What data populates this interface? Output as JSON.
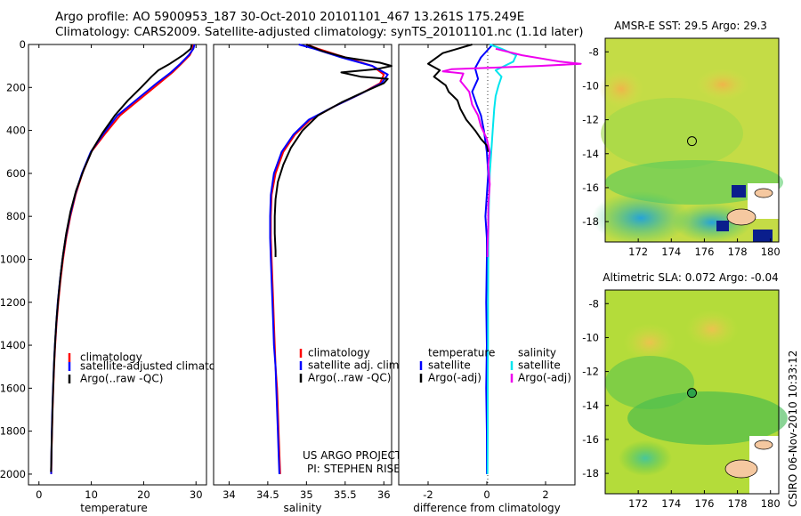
{
  "title": {
    "line1": "Argo profile: AO 5900953_187 30-Oct-2010 20101101_467 13.261S 175.249E",
    "line2": "Climatology: CARS2009. Satellite-adjusted climatology: synTS_20101101.nc (1.1d later)"
  },
  "credit": {
    "project": "US ARGO PROJECT",
    "pi": "PI: STEPHEN RISER"
  },
  "timestamp": "CSIRO 06-Nov-2010 10:33:12",
  "colors": {
    "climatology": "#ff0000",
    "satellite": "#0000ff",
    "argo": "#000000",
    "satellite_sal": "#00e5ee",
    "argo_sal": "#ee00ee"
  },
  "chart_data": [
    {
      "type": "line",
      "name": "temperature-profile",
      "xlabel": "temperature",
      "ylabel": "",
      "xlim": [
        -2,
        32
      ],
      "ylim": [
        2050,
        0
      ],
      "xticks": [
        "0",
        "10",
        "20",
        "30"
      ],
      "yticks": [
        "0",
        "200",
        "400",
        "600",
        "800",
        "1000",
        "1200",
        "1400",
        "1600",
        "1800",
        "2000"
      ],
      "legend": [
        "climatology",
        "satellite-adjusted climatology",
        "Argo(..raw -QC)"
      ],
      "series": [
        {
          "name": "climatology",
          "color": "#ff0000",
          "points": [
            [
              29.5,
              0
            ],
            [
              29.4,
              20
            ],
            [
              28.8,
              50
            ],
            [
              27.2,
              90
            ],
            [
              25.5,
              130
            ],
            [
              23,
              180
            ],
            [
              19.5,
              250
            ],
            [
              15.5,
              330
            ],
            [
              12.5,
              420
            ],
            [
              10,
              500
            ],
            [
              8.3,
              600
            ],
            [
              7,
              700
            ],
            [
              6,
              800
            ],
            [
              5.2,
              900
            ],
            [
              4.6,
              1000
            ],
            [
              4.1,
              1100
            ],
            [
              3.7,
              1200
            ],
            [
              3.35,
              1300
            ],
            [
              3.1,
              1400
            ],
            [
              2.9,
              1500
            ],
            [
              2.75,
              1600
            ],
            [
              2.6,
              1700
            ],
            [
              2.5,
              1800
            ],
            [
              2.4,
              1900
            ],
            [
              2.35,
              2000
            ]
          ]
        },
        {
          "name": "satellite-adjusted climatology",
          "color": "#0000ff",
          "points": [
            [
              29.7,
              0
            ],
            [
              29.5,
              20
            ],
            [
              28.6,
              50
            ],
            [
              27,
              90
            ],
            [
              25.2,
              130
            ],
            [
              22.5,
              180
            ],
            [
              19,
              250
            ],
            [
              15,
              330
            ],
            [
              12.2,
              420
            ],
            [
              9.9,
              500
            ],
            [
              8.2,
              600
            ],
            [
              6.9,
              700
            ],
            [
              5.9,
              800
            ],
            [
              5.1,
              900
            ],
            [
              4.5,
              1000
            ],
            [
              4,
              1100
            ],
            [
              3.6,
              1200
            ],
            [
              3.3,
              1300
            ],
            [
              3.05,
              1400
            ],
            [
              2.85,
              1500
            ],
            [
              2.7,
              1600
            ],
            [
              2.55,
              1700
            ],
            [
              2.45,
              1800
            ],
            [
              2.38,
              1900
            ],
            [
              2.33,
              2000
            ]
          ]
        },
        {
          "name": "Argo(..raw -QC)",
          "color": "#000000",
          "points": [
            [
              29.2,
              0
            ],
            [
              29,
              20
            ],
            [
              27.5,
              50
            ],
            [
              25,
              90
            ],
            [
              22.8,
              120
            ],
            [
              21.5,
              150
            ],
            [
              19.5,
              200
            ],
            [
              17,
              260
            ],
            [
              14.5,
              330
            ],
            [
              12.2,
              410
            ],
            [
              10.2,
              490
            ],
            [
              8.6,
              580
            ],
            [
              7.1,
              680
            ],
            [
              6,
              780
            ],
            [
              5.2,
              880
            ],
            [
              4.6,
              980
            ],
            [
              4.1,
              1080
            ],
            [
              3.7,
              1180
            ],
            [
              3.35,
              1280
            ],
            [
              3.1,
              1380
            ],
            [
              2.9,
              1480
            ],
            [
              2.75,
              1580
            ],
            [
              2.6,
              1680
            ],
            [
              2.5,
              1780
            ],
            [
              2.4,
              1880
            ],
            [
              2.35,
              1950
            ],
            [
              2.3,
              1990
            ]
          ]
        }
      ]
    },
    {
      "type": "line",
      "name": "salinity-profile",
      "xlabel": "salinity",
      "xlim": [
        33.8,
        36.1
      ],
      "ylim": [
        2050,
        0
      ],
      "xticks": [
        "34",
        "34.5",
        "35",
        "35.5",
        "36"
      ],
      "legend": [
        "climatology",
        "satellite adj. clim.",
        "Argo(..raw -QC)"
      ],
      "series": [
        {
          "name": "climatology",
          "color": "#ff0000",
          "points": [
            [
              35.0,
              0
            ],
            [
              35.15,
              20
            ],
            [
              35.5,
              60
            ],
            [
              35.85,
              100
            ],
            [
              36.0,
              140
            ],
            [
              35.95,
              180
            ],
            [
              35.7,
              230
            ],
            [
              35.35,
              290
            ],
            [
              35.05,
              350
            ],
            [
              34.85,
              420
            ],
            [
              34.7,
              500
            ],
            [
              34.6,
              600
            ],
            [
              34.55,
              700
            ],
            [
              34.54,
              800
            ],
            [
              34.54,
              900
            ],
            [
              34.55,
              1000
            ],
            [
              34.56,
              1100
            ],
            [
              34.57,
              1200
            ],
            [
              34.58,
              1300
            ],
            [
              34.59,
              1400
            ],
            [
              34.6,
              1500
            ],
            [
              34.62,
              1600
            ],
            [
              34.63,
              1700
            ],
            [
              34.64,
              1800
            ],
            [
              34.65,
              1900
            ],
            [
              34.66,
              2000
            ]
          ]
        },
        {
          "name": "satellite adj. clim.",
          "color": "#0000ff",
          "points": [
            [
              34.9,
              0
            ],
            [
              35.1,
              20
            ],
            [
              35.45,
              60
            ],
            [
              35.85,
              100
            ],
            [
              36.05,
              140
            ],
            [
              35.97,
              180
            ],
            [
              35.7,
              230
            ],
            [
              35.35,
              290
            ],
            [
              35.03,
              350
            ],
            [
              34.83,
              420
            ],
            [
              34.68,
              500
            ],
            [
              34.58,
              600
            ],
            [
              34.54,
              700
            ],
            [
              34.53,
              800
            ],
            [
              34.53,
              900
            ],
            [
              34.54,
              1000
            ],
            [
              34.55,
              1100
            ],
            [
              34.56,
              1200
            ],
            [
              34.57,
              1300
            ],
            [
              34.58,
              1400
            ],
            [
              34.6,
              1500
            ],
            [
              34.61,
              1600
            ],
            [
              34.62,
              1700
            ],
            [
              34.63,
              1800
            ],
            [
              34.64,
              1900
            ],
            [
              34.65,
              2000
            ]
          ]
        },
        {
          "name": "Argo(..raw -QC)",
          "color": "#000000",
          "points": [
            [
              35.0,
              0
            ],
            [
              35.2,
              30
            ],
            [
              35.5,
              60
            ],
            [
              35.95,
              85
            ],
            [
              36.1,
              100
            ],
            [
              35.9,
              115
            ],
            [
              35.45,
              130
            ],
            [
              35.7,
              150
            ],
            [
              36.05,
              160
            ],
            [
              36.0,
              180
            ],
            [
              35.75,
              220
            ],
            [
              35.45,
              270
            ],
            [
              35.15,
              330
            ],
            [
              34.95,
              400
            ],
            [
              34.8,
              480
            ],
            [
              34.7,
              560
            ],
            [
              34.63,
              640
            ],
            [
              34.6,
              720
            ],
            [
              34.59,
              800
            ],
            [
              34.59,
              880
            ],
            [
              34.6,
              960
            ],
            [
              34.6,
              990
            ]
          ]
        }
      ]
    },
    {
      "type": "line",
      "name": "difference-profile",
      "xlabel": "difference from climatology",
      "xlim": [
        -3,
        3
      ],
      "ylim": [
        2050,
        0
      ],
      "xticks": [
        "-2",
        "0",
        "2"
      ],
      "legend_left": {
        "title": "temperature",
        "items": [
          "satellite",
          "Argo(-adj)"
        ]
      },
      "legend_right": {
        "title": "salinity",
        "items": [
          "satellite",
          "Argo(-adj)"
        ]
      },
      "series": [
        {
          "name": "temperature satellite",
          "color": "#0000ff",
          "points": [
            [
              0.2,
              0
            ],
            [
              -0.2,
              60
            ],
            [
              -0.4,
              110
            ],
            [
              -0.3,
              160
            ],
            [
              -0.5,
              220
            ],
            [
              -0.35,
              280
            ],
            [
              -0.2,
              330
            ],
            [
              -0.1,
              400
            ],
            [
              0,
              500
            ],
            [
              0.05,
              600
            ],
            [
              0,
              700
            ],
            [
              -0.05,
              800
            ],
            [
              0,
              900
            ],
            [
              0,
              1000
            ],
            [
              -0.02,
              1200
            ],
            [
              0,
              1400
            ],
            [
              -0.02,
              1600
            ],
            [
              0,
              1800
            ],
            [
              0,
              2000
            ]
          ]
        },
        {
          "name": "temperature Argo(-adj)",
          "color": "#000000",
          "points": [
            [
              -0.5,
              0
            ],
            [
              -1.5,
              40
            ],
            [
              -2,
              90
            ],
            [
              -1.6,
              120
            ],
            [
              -1.8,
              150
            ],
            [
              -1.4,
              190
            ],
            [
              -1.3,
              220
            ],
            [
              -1.0,
              260
            ],
            [
              -0.9,
              300
            ],
            [
              -0.7,
              350
            ],
            [
              -0.4,
              400
            ],
            [
              -0.2,
              440
            ],
            [
              0,
              470
            ],
            [
              0.05,
              500
            ]
          ]
        },
        {
          "name": "salinity satellite",
          "color": "#00e5ee",
          "points": [
            [
              0.1,
              0
            ],
            [
              0.5,
              20
            ],
            [
              1.0,
              50
            ],
            [
              0.9,
              80
            ],
            [
              0.6,
              100
            ],
            [
              0.3,
              120
            ],
            [
              0.5,
              150
            ],
            [
              0.4,
              190
            ],
            [
              0.3,
              240
            ],
            [
              0.25,
              300
            ],
            [
              0.2,
              400
            ],
            [
              0.15,
              500
            ],
            [
              0.1,
              600
            ],
            [
              0.08,
              700
            ],
            [
              0.06,
              800
            ],
            [
              0.05,
              900
            ],
            [
              0.05,
              1000
            ],
            [
              0.04,
              1200
            ],
            [
              0.04,
              1400
            ],
            [
              0.03,
              1600
            ],
            [
              0.03,
              1800
            ],
            [
              0.02,
              2000
            ]
          ]
        },
        {
          "name": "salinity Argo(-adj)",
          "color": "#ee00ee",
          "points": [
            [
              0.3,
              20
            ],
            [
              1.2,
              50
            ],
            [
              2.5,
              80
            ],
            [
              3.2,
              90
            ],
            [
              1.8,
              100
            ],
            [
              -1.2,
              115
            ],
            [
              -1.5,
              125
            ],
            [
              -0.8,
              135
            ],
            [
              -0.9,
              170
            ],
            [
              -0.6,
              220
            ],
            [
              -0.5,
              280
            ],
            [
              -0.3,
              330
            ],
            [
              -0.2,
              380
            ],
            [
              0,
              440
            ],
            [
              0.1,
              500
            ],
            [
              0.05,
              560
            ],
            [
              0.1,
              650
            ],
            [
              0.05,
              750
            ],
            [
              0.05,
              850
            ],
            [
              0.02,
              950
            ],
            [
              0.02,
              990
            ]
          ]
        }
      ]
    },
    {
      "type": "heatmap",
      "name": "sst-map",
      "title": "AMSR-E SST: 29.5 Argo: 29.3",
      "xlim": [
        170,
        180.5
      ],
      "ylim": [
        -19.2,
        -7.2
      ],
      "xticks": [
        "172",
        "174",
        "176",
        "178",
        "180"
      ],
      "yticks": [
        "-8",
        "-10",
        "-12",
        "-14",
        "-16",
        "-18"
      ],
      "marker": {
        "lon": 175.249,
        "lat": -13.261
      }
    },
    {
      "type": "heatmap",
      "name": "sla-map",
      "title": "Altimetric SLA: 0.072 Argo: -0.04",
      "xlim": [
        170,
        180.5
      ],
      "ylim": [
        -19.2,
        -7.2
      ],
      "xticks": [
        "172",
        "174",
        "176",
        "178",
        "180"
      ],
      "yticks": [
        "-8",
        "-10",
        "-12",
        "-14",
        "-16",
        "-18"
      ],
      "marker": {
        "lon": 175.249,
        "lat": -13.261
      }
    }
  ]
}
